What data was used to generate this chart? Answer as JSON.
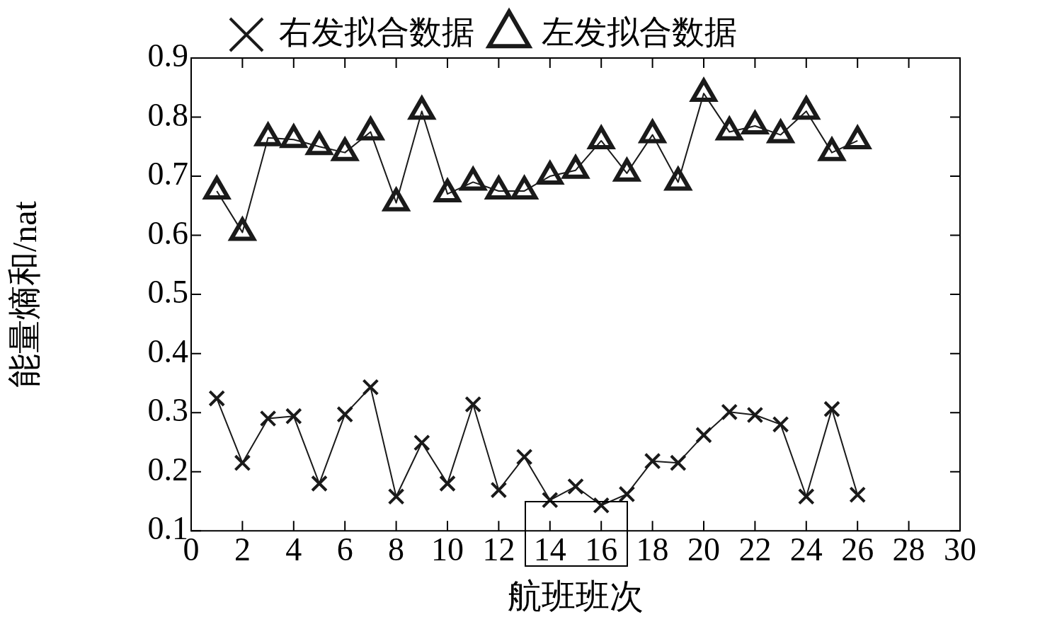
{
  "chart_data": {
    "type": "line",
    "xlabel": "航班班次",
    "ylabel": "能量熵和/nat",
    "x": [
      1,
      2,
      3,
      4,
      5,
      6,
      7,
      8,
      9,
      10,
      11,
      12,
      13,
      14,
      15,
      16,
      17,
      18,
      19,
      20,
      21,
      22,
      23,
      24,
      25,
      26
    ],
    "series": [
      {
        "name": "右发拟合数据",
        "color": "#1a1a1a",
        "marker": "cross",
        "values": [
          0.324,
          0.215,
          0.29,
          0.294,
          0.18,
          0.297,
          0.343,
          0.158,
          0.249,
          0.18,
          0.314,
          0.169,
          0.225,
          0.152,
          0.175,
          0.143,
          0.162,
          0.218,
          0.215,
          0.262,
          0.301,
          0.296,
          0.28,
          0.158,
          0.306,
          0.161
        ]
      },
      {
        "name": "左发拟合数据",
        "color": "#1a1a1a",
        "marker": "triangle",
        "values": [
          0.675,
          0.605,
          0.765,
          0.762,
          0.75,
          0.74,
          0.775,
          0.655,
          0.81,
          0.67,
          0.69,
          0.675,
          0.675,
          0.7,
          0.71,
          0.76,
          0.705,
          0.77,
          0.69,
          0.84,
          0.775,
          0.785,
          0.77,
          0.81,
          0.74,
          0.76
        ]
      }
    ],
    "xlim": [
      0,
      30
    ],
    "xticks": [
      0,
      2,
      4,
      6,
      8,
      10,
      12,
      14,
      16,
      18,
      20,
      22,
      24,
      26,
      28,
      30
    ],
    "ylim": [
      0.1,
      0.9
    ],
    "yticks": [
      0.1,
      0.2,
      0.3,
      0.4,
      0.5,
      0.6,
      0.7,
      0.8,
      0.9
    ],
    "grid": false,
    "legend": "top",
    "line_style": "solid"
  }
}
